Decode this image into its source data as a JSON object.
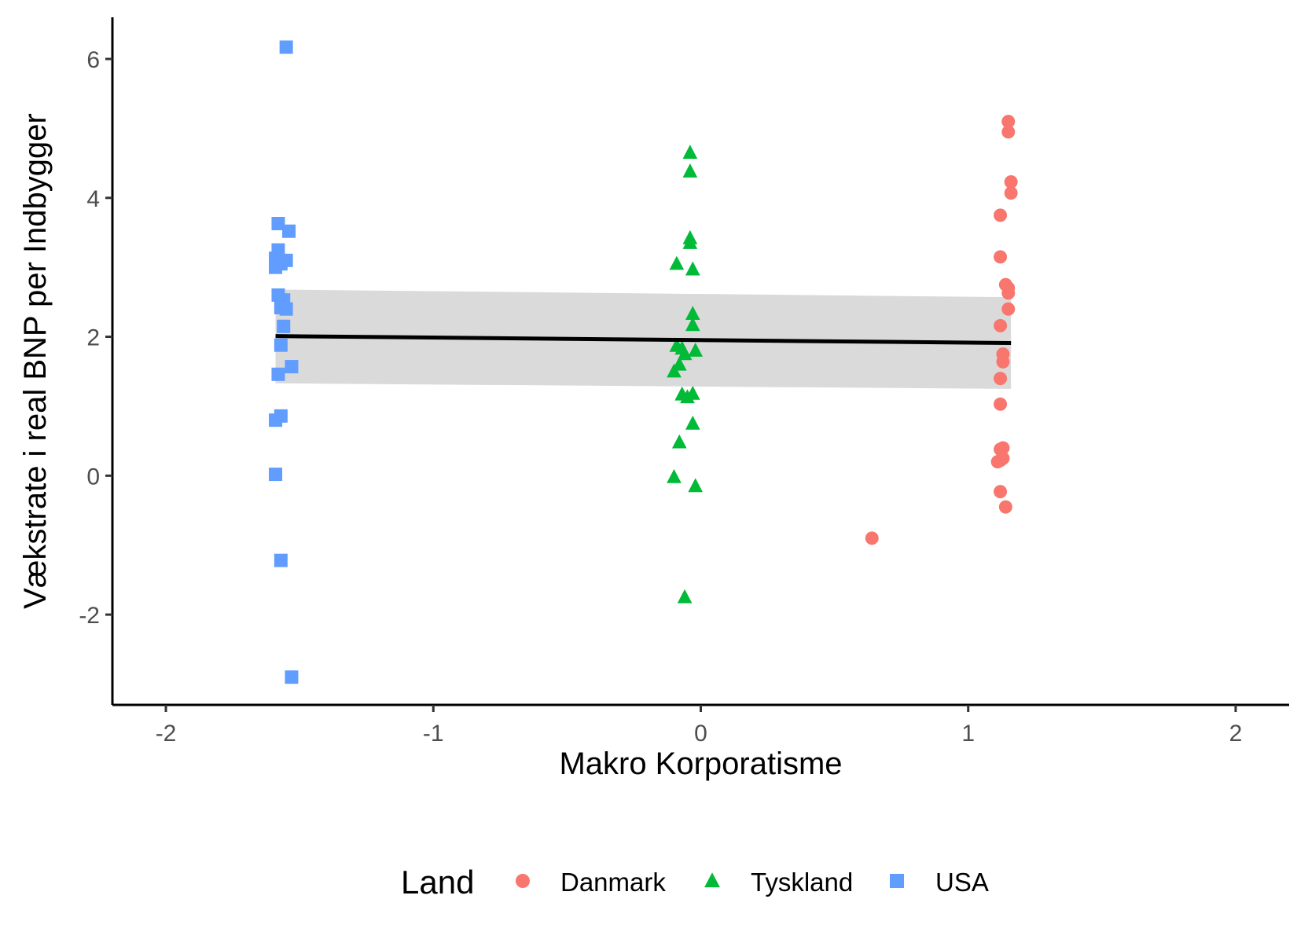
{
  "chart_data": {
    "type": "scatter",
    "xlabel": "Makro Korporatisme",
    "ylabel": "Vækstrate i real BNP per Indbygger",
    "xlim": [
      -2.2,
      2.2
    ],
    "ylim": [
      -3.3,
      6.6
    ],
    "xticks": [
      -2,
      -1,
      0,
      1,
      2
    ],
    "yticks": [
      -2,
      0,
      2,
      4,
      6
    ],
    "xtick_labels": [
      "-2",
      "-1",
      "0",
      "1",
      "2"
    ],
    "ytick_labels": [
      "-2",
      "0",
      "2",
      "4",
      "6"
    ],
    "grid": false,
    "legend": {
      "title": "Land",
      "position": "bottom"
    },
    "series": [
      {
        "name": "Danmark",
        "marker": "circle",
        "color": "#F8766D",
        "points": [
          [
            1.15,
            5.1
          ],
          [
            1.15,
            4.95
          ],
          [
            1.16,
            4.23
          ],
          [
            1.16,
            4.07
          ],
          [
            1.12,
            3.75
          ],
          [
            1.12,
            3.15
          ],
          [
            1.14,
            2.75
          ],
          [
            1.15,
            2.7
          ],
          [
            1.15,
            2.63
          ],
          [
            1.15,
            2.4
          ],
          [
            1.12,
            2.16
          ],
          [
            1.13,
            1.75
          ],
          [
            1.13,
            1.64
          ],
          [
            1.12,
            1.4
          ],
          [
            1.12,
            1.03
          ],
          [
            1.13,
            0.4
          ],
          [
            1.12,
            0.38
          ],
          [
            1.13,
            0.25
          ],
          [
            1.12,
            0.22
          ],
          [
            1.11,
            0.2
          ],
          [
            1.12,
            -0.23
          ],
          [
            1.14,
            -0.45
          ],
          [
            0.64,
            -0.9
          ]
        ]
      },
      {
        "name": "Tyskland",
        "marker": "triangle",
        "color": "#00BA38",
        "points": [
          [
            -0.04,
            4.65
          ],
          [
            -0.04,
            4.38
          ],
          [
            -0.04,
            3.42
          ],
          [
            -0.04,
            3.35
          ],
          [
            -0.09,
            3.05
          ],
          [
            -0.03,
            2.97
          ],
          [
            -0.03,
            2.33
          ],
          [
            -0.03,
            2.17
          ],
          [
            -0.09,
            1.87
          ],
          [
            -0.07,
            1.83
          ],
          [
            -0.06,
            1.75
          ],
          [
            -0.02,
            1.8
          ],
          [
            -0.08,
            1.6
          ],
          [
            -0.1,
            1.5
          ],
          [
            -0.07,
            1.17
          ],
          [
            -0.03,
            1.18
          ],
          [
            -0.05,
            1.13
          ],
          [
            -0.03,
            0.75
          ],
          [
            -0.08,
            0.48
          ],
          [
            -0.1,
            -0.02
          ],
          [
            -0.02,
            -0.15
          ],
          [
            -0.06,
            -1.75
          ]
        ]
      },
      {
        "name": "USA",
        "marker": "square",
        "color": "#619CFF",
        "points": [
          [
            -1.55,
            6.17
          ],
          [
            -1.58,
            3.63
          ],
          [
            -1.54,
            3.52
          ],
          [
            -1.58,
            3.25
          ],
          [
            -1.59,
            3.13
          ],
          [
            -1.55,
            3.1
          ],
          [
            -1.57,
            3.05
          ],
          [
            -1.59,
            3.0
          ],
          [
            -1.58,
            2.6
          ],
          [
            -1.56,
            2.53
          ],
          [
            -1.57,
            2.42
          ],
          [
            -1.55,
            2.4
          ],
          [
            -1.56,
            2.15
          ],
          [
            -1.57,
            1.88
          ],
          [
            -1.53,
            1.57
          ],
          [
            -1.58,
            1.46
          ],
          [
            -1.57,
            0.86
          ],
          [
            -1.59,
            0.8
          ],
          [
            -1.59,
            0.02
          ],
          [
            -1.57,
            -1.22
          ],
          [
            -1.53,
            -2.9
          ]
        ]
      }
    ],
    "regression": {
      "type": "linear",
      "x": [
        -1.59,
        1.16
      ],
      "y": [
        2.01,
        1.91
      ],
      "ci_lower": [
        1.33,
        1.25
      ],
      "ci_upper": [
        2.68,
        2.57
      ],
      "line_color": "#000000",
      "band_color": "#D3D3D3"
    }
  }
}
